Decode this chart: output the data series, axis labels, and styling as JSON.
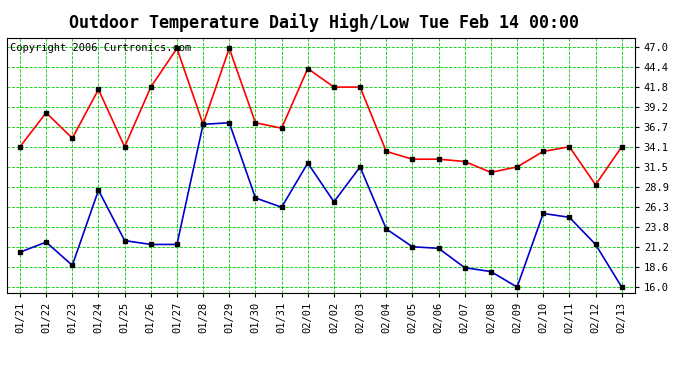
{
  "title": "Outdoor Temperature Daily High/Low Tue Feb 14 00:00",
  "copyright": "Copyright 2006 Curtronics.com",
  "x_labels": [
    "01/21",
    "01/22",
    "01/23",
    "01/24",
    "01/25",
    "01/26",
    "01/27",
    "01/28",
    "01/29",
    "01/30",
    "01/31",
    "02/01",
    "02/02",
    "02/03",
    "02/04",
    "02/05",
    "02/06",
    "02/07",
    "02/08",
    "02/09",
    "02/10",
    "02/11",
    "02/12",
    "02/13"
  ],
  "high_temps": [
    34.1,
    38.5,
    35.2,
    41.5,
    34.1,
    41.8,
    46.8,
    37.0,
    46.8,
    37.2,
    36.5,
    44.2,
    41.8,
    41.8,
    33.5,
    32.5,
    32.5,
    32.2,
    30.8,
    31.5,
    33.5,
    34.1,
    29.2,
    34.1
  ],
  "low_temps": [
    20.5,
    21.8,
    18.8,
    28.5,
    22.0,
    21.5,
    21.5,
    37.0,
    37.2,
    27.5,
    26.3,
    32.0,
    27.0,
    31.5,
    23.5,
    21.2,
    21.0,
    18.5,
    18.0,
    16.0,
    25.5,
    25.0,
    21.5,
    16.0
  ],
  "high_color": "#ff0000",
  "low_color": "#0000cc",
  "marker_fill": "#000000",
  "grid_color": "#00cc00",
  "background_color": "#ffffff",
  "yticks": [
    16.0,
    18.6,
    21.2,
    23.8,
    26.3,
    28.9,
    31.5,
    34.1,
    36.7,
    39.2,
    41.8,
    44.4,
    47.0
  ],
  "ylim": [
    15.3,
    48.2
  ],
  "title_fontsize": 12,
  "copyright_fontsize": 7.5,
  "tick_fontsize": 7.5,
  "line_width": 1.2,
  "marker_size": 2.5
}
